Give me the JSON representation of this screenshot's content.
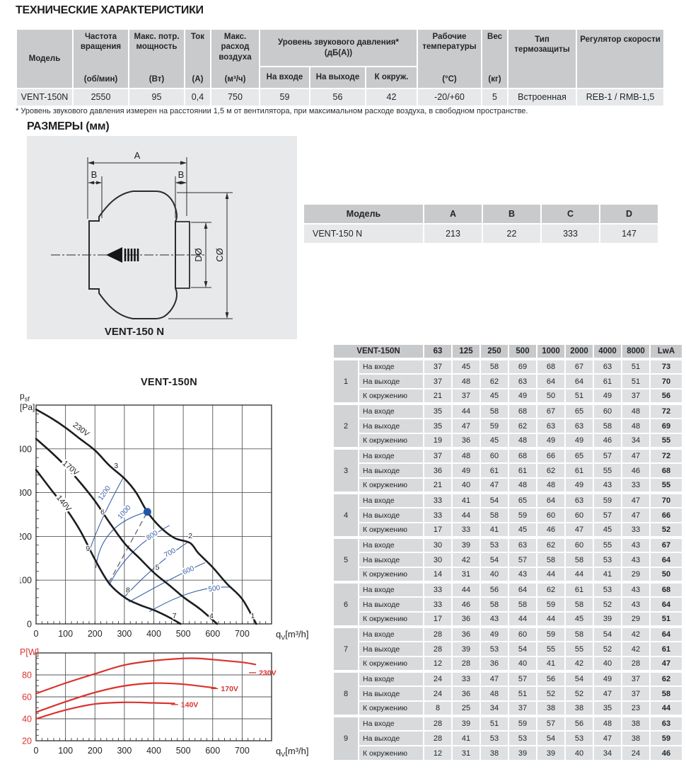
{
  "page_title": "ТЕХНИЧЕСКИЕ ХАРАКТЕРИСТИКИ",
  "spec_table": {
    "h": {
      "model": "Модель",
      "freq": "Частота вращения",
      "freq_u": "(об/мин)",
      "power": "Макс. потр. мощность",
      "power_u": "(Вт)",
      "current": "Ток",
      "current_u": "(А)",
      "flow": "Макс. расход воздуха",
      "flow_u": "(м³/ч)",
      "noise": "Уровень звукового давления*",
      "noise2": "(дБ(А))",
      "noise_in": "На входе",
      "noise_out": "На выходе",
      "noise_amb": "К окруж.",
      "temp": "Рабочие температуры",
      "temp_u": "(°С)",
      "weight": "Вес",
      "weight_u": "(кг)",
      "thermal": "Тип термозащиты",
      "regulator": "Регулятор скорости"
    },
    "row": {
      "model": "VENT-150N",
      "freq": "2550",
      "power": "95",
      "current": "0,4",
      "flow": "750",
      "noise_in": "59",
      "noise_out": "56",
      "noise_amb": "42",
      "temp": "-20/+60",
      "weight": "5",
      "thermal": "Встроенная",
      "regulator": "REB-1 / RMB-1,5"
    }
  },
  "footnote": "* Уровень звукового давления измерен на расстоянии 1,5 м от вентилятора, при максимальном расходе воздуха, в свободном пространстве.",
  "dimensions": {
    "heading": "РАЗМЕРЫ (мм)",
    "caption": "VENT-150 N",
    "labels": {
      "a": "A",
      "b": "B",
      "d": "DØ",
      "c": "CØ"
    },
    "table": {
      "headers": [
        "Модель",
        "A",
        "B",
        "C",
        "D"
      ],
      "row": [
        "VENT-150 N",
        "213",
        "22",
        "333",
        "147"
      ]
    }
  },
  "sound_table": {
    "model": "VENT-150N",
    "freq_headers": [
      "63",
      "125",
      "250",
      "500",
      "1000",
      "2000",
      "4000",
      "8000",
      "LwA"
    ],
    "row_labels": [
      "На входе",
      "На выходе",
      "К окружению"
    ],
    "groups": [
      {
        "num": "1",
        "rows": [
          [
            37,
            45,
            58,
            69,
            68,
            67,
            63,
            51,
            73
          ],
          [
            37,
            48,
            62,
            63,
            64,
            64,
            61,
            51,
            70
          ],
          [
            21,
            37,
            45,
            49,
            50,
            51,
            49,
            37,
            56
          ]
        ]
      },
      {
        "num": "2",
        "rows": [
          [
            35,
            44,
            58,
            68,
            67,
            65,
            60,
            48,
            72
          ],
          [
            35,
            47,
            59,
            62,
            63,
            63,
            58,
            48,
            69
          ],
          [
            19,
            36,
            45,
            48,
            49,
            49,
            46,
            34,
            55
          ]
        ]
      },
      {
        "num": "3",
        "rows": [
          [
            37,
            48,
            60,
            68,
            66,
            65,
            57,
            47,
            72
          ],
          [
            36,
            49,
            61,
            61,
            62,
            61,
            55,
            46,
            68
          ],
          [
            21,
            40,
            47,
            48,
            48,
            49,
            43,
            33,
            55
          ]
        ]
      },
      {
        "num": "4",
        "rows": [
          [
            33,
            41,
            54,
            65,
            64,
            63,
            59,
            47,
            70
          ],
          [
            33,
            44,
            58,
            59,
            60,
            60,
            57,
            47,
            66
          ],
          [
            17,
            33,
            41,
            45,
            46,
            47,
            45,
            33,
            52
          ]
        ]
      },
      {
        "num": "5",
        "rows": [
          [
            30,
            39,
            53,
            63,
            62,
            60,
            55,
            43,
            67
          ],
          [
            30,
            42,
            54,
            57,
            58,
            58,
            53,
            43,
            64
          ],
          [
            14,
            31,
            40,
            43,
            44,
            44,
            41,
            29,
            50
          ]
        ]
      },
      {
        "num": "6",
        "rows": [
          [
            33,
            44,
            56,
            64,
            62,
            61,
            53,
            43,
            68
          ],
          [
            33,
            46,
            58,
            58,
            59,
            58,
            52,
            43,
            64
          ],
          [
            17,
            36,
            43,
            44,
            44,
            45,
            39,
            29,
            51
          ]
        ]
      },
      {
        "num": "7",
        "rows": [
          [
            28,
            36,
            49,
            60,
            59,
            58,
            54,
            42,
            64
          ],
          [
            28,
            39,
            53,
            54,
            55,
            55,
            52,
            42,
            61
          ],
          [
            12,
            28,
            36,
            40,
            41,
            42,
            40,
            28,
            47
          ]
        ]
      },
      {
        "num": "8",
        "rows": [
          [
            24,
            33,
            47,
            57,
            56,
            54,
            49,
            37,
            62
          ],
          [
            24,
            36,
            48,
            51,
            52,
            52,
            47,
            37,
            58
          ],
          [
            8,
            25,
            34,
            37,
            38,
            38,
            35,
            23,
            44
          ]
        ]
      },
      {
        "num": "9",
        "rows": [
          [
            28,
            39,
            51,
            59,
            57,
            56,
            48,
            38,
            63
          ],
          [
            28,
            41,
            53,
            53,
            54,
            53,
            47,
            38,
            59
          ],
          [
            12,
            31,
            38,
            39,
            39,
            40,
            34,
            24,
            46
          ]
        ]
      }
    ]
  },
  "chart_data": [
    {
      "id": "pressure-chart",
      "type": "line",
      "title": "VENT-150N",
      "ylabel": {
        "sym": "p",
        "sub": "sf",
        "unit": "[Pa]"
      },
      "xlabel": {
        "sym": "q",
        "sub": "V",
        "unit": "[m³/h]"
      },
      "xlim": [
        0,
        800
      ],
      "ylim": [
        0,
        500
      ],
      "xticks": [
        0,
        100,
        200,
        300,
        400,
        500,
        600,
        700
      ],
      "yticks": [
        0,
        100,
        200,
        300,
        400
      ],
      "grid": true,
      "series": [
        {
          "name": "230V",
          "points": [
            [
              0,
              490
            ],
            [
              52,
              470
            ],
            [
              101,
              448
            ],
            [
              149,
              423
            ],
            [
              201,
              396
            ],
            [
              249,
              362
            ],
            [
              302,
              331
            ],
            [
              340,
              300
            ],
            [
              378,
              256
            ],
            [
              422,
              221
            ],
            [
              471,
              196
            ],
            [
              523,
              185
            ],
            [
              551,
              162
            ],
            [
              599,
              130
            ],
            [
              648,
              92
            ],
            [
              700,
              57
            ],
            [
              748,
              0
            ]
          ],
          "label_at": [
            148,
            440
          ],
          "label_rot": 37
        },
        {
          "name": "170V",
          "points": [
            [
              0,
              423
            ],
            [
              52,
              392
            ],
            [
              101,
              360
            ],
            [
              150,
              323
            ],
            [
              201,
              280
            ],
            [
              249,
              232
            ],
            [
              302,
              183
            ],
            [
              350,
              151
            ],
            [
              402,
              116
            ],
            [
              455,
              87
            ],
            [
              503,
              60
            ],
            [
              559,
              33
            ],
            [
              615,
              0
            ]
          ],
          "label_at": [
            112,
            352
          ],
          "label_rot": 40
        },
        {
          "name": "140V",
          "points": [
            [
              0,
              352
            ],
            [
              52,
              306
            ],
            [
              101,
              264
            ],
            [
              150,
              213
            ],
            [
              201,
              146
            ],
            [
              249,
              92
            ],
            [
              302,
              60
            ],
            [
              350,
              44
            ],
            [
              402,
              31
            ],
            [
              455,
              14
            ],
            [
              491,
              0
            ]
          ],
          "label_at": [
            88,
            272
          ],
          "label_rot": 50
        }
      ],
      "rpm_curves": [
        {
          "label": "1200",
          "p0": [
            180,
            165
          ],
          "mid": [
            229,
            246
          ],
          "p1": [
            296,
            334
          ],
          "label_at": [
            238,
            296
          ],
          "label_rot": -55
        },
        {
          "label": "1000",
          "p0": [
            203,
            128
          ],
          "mid": [
            255,
            210
          ],
          "p1": [
            378,
            256
          ],
          "label_at": [
            305,
            252
          ],
          "label_rot": -48
        },
        {
          "label": "800",
          "p0": [
            248,
            88
          ],
          "mid": [
            330,
            165
          ],
          "p1": [
            453,
            225
          ],
          "label_at": [
            398,
            198
          ],
          "label_rot": -33
        },
        {
          "label": "700",
          "p0": [
            298,
            60
          ],
          "mid": [
            405,
            130
          ],
          "p1": [
            514,
            186
          ],
          "label_at": [
            458,
            158
          ],
          "label_rot": -28
        },
        {
          "label": "600",
          "p0": [
            315,
            50
          ],
          "mid": [
            460,
            103
          ],
          "p1": [
            574,
            140
          ],
          "label_at": [
            520,
            118
          ],
          "label_rot": -22
        },
        {
          "label": "500",
          "p0": [
            385,
            28
          ],
          "mid": [
            530,
            72
          ],
          "p1": [
            658,
            84
          ],
          "label_at": [
            606,
            76
          ],
          "label_rot": -8
        }
      ],
      "point_labels": [
        {
          "t": "3",
          "x": 272,
          "y": 356
        },
        {
          "t": "6",
          "x": 226,
          "y": 250
        },
        {
          "t": "9",
          "x": 176,
          "y": 167
        },
        {
          "t": "2",
          "x": 524,
          "y": 196
        },
        {
          "t": "5",
          "x": 412,
          "y": 124
        },
        {
          "t": "8",
          "x": 312,
          "y": 72
        },
        {
          "t": "7",
          "x": 470,
          "y": 13
        },
        {
          "t": "4",
          "x": 596,
          "y": 13
        },
        {
          "t": "1",
          "x": 736,
          "y": 13
        }
      ],
      "marker": {
        "x": 378,
        "y": 256
      },
      "dash_line": [
        [
          247,
          94
        ],
        [
          378,
          256
        ]
      ],
      "colors": {
        "curve": "#1c1d1f",
        "rpm": "#3a62a8",
        "marker": "#2257a8",
        "grid": "#56575b"
      }
    },
    {
      "id": "power-chart",
      "type": "line",
      "ylabel": {
        "sym": "P",
        "sub": "",
        "unit": "[W]"
      },
      "xlabel": {
        "sym": "q",
        "sub": "V",
        "unit": "[m³/h]"
      },
      "xlim": [
        0,
        800
      ],
      "ylim": [
        20,
        100
      ],
      "xticks": [
        0,
        100,
        200,
        300,
        400,
        500,
        600,
        700
      ],
      "yticks": [
        20,
        40,
        60,
        80
      ],
      "grid": true,
      "series": [
        {
          "name": "230V",
          "points": [
            [
              0,
              63
            ],
            [
              100,
              72.5
            ],
            [
              200,
              81
            ],
            [
              300,
              89
            ],
            [
              400,
              93
            ],
            [
              500,
              95
            ],
            [
              550,
              95
            ],
            [
              600,
              94
            ],
            [
              700,
              91.5
            ],
            [
              745,
              89.5
            ]
          ],
          "label_at": [
            757,
            82
          ]
        },
        {
          "name": "170V",
          "points": [
            [
              0,
              46
            ],
            [
              100,
              55.5
            ],
            [
              200,
              64
            ],
            [
              300,
              70
            ],
            [
              400,
              72.5
            ],
            [
              500,
              71.5
            ],
            [
              610,
              68
            ]
          ],
          "label_at": [
            628,
            67.5
          ]
        },
        {
          "name": "140V",
          "points": [
            [
              0,
              40
            ],
            [
              100,
              48
            ],
            [
              200,
              53.5
            ],
            [
              300,
              55
            ],
            [
              400,
              54.5
            ],
            [
              470,
              54
            ]
          ],
          "label_at": [
            492,
            53
          ]
        }
      ],
      "colors": {
        "curve": "#d9342e",
        "grid": "#56575b",
        "ytick": "#d9342e"
      }
    }
  ]
}
